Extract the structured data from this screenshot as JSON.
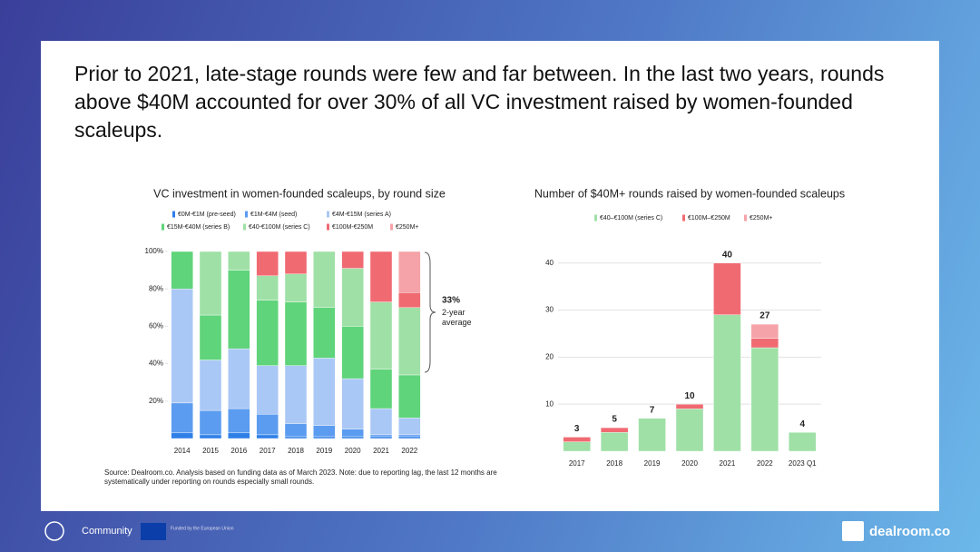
{
  "header": {
    "title": "Prior to 2021, late-stage rounds were few and far between. In the last two years, rounds above $40M accounted for over 30% of all VC investment raised by women-founded scaleups."
  },
  "chart_data": [
    {
      "type": "stacked_bar",
      "title": "VC investment in women-founded scaleups, by round size",
      "categories": [
        "2014",
        "2015",
        "2016",
        "2017",
        "2018",
        "2019",
        "2020",
        "2021",
        "2022"
      ],
      "series": [
        {
          "name": "€0M-€1M (pre-seed)",
          "color": "#2f7fe8",
          "values": [
            3,
            2,
            3,
            2,
            1,
            1,
            1,
            1,
            1
          ]
        },
        {
          "name": "€1M-€4M (seed)",
          "color": "#5b9cf0",
          "values": [
            16,
            13,
            13,
            11,
            7,
            6,
            4,
            1,
            1
          ]
        },
        {
          "name": "€4M-€15M (series A)",
          "color": "#aac8f5",
          "values": [
            61,
            27,
            32,
            26,
            31,
            36,
            27,
            14,
            9
          ]
        },
        {
          "name": "€15M-€40M (series B)",
          "color": "#5fd47a",
          "values": [
            20,
            24,
            42,
            35,
            34,
            27,
            28,
            21,
            23
          ]
        },
        {
          "name": "€40-€100M (series C)",
          "color": "#9fe0a6",
          "values": [
            0,
            34,
            10,
            13,
            15,
            30,
            31,
            36,
            36
          ]
        },
        {
          "name": "€100M-€250M",
          "color": "#f06a72",
          "values": [
            0,
            0,
            0,
            13,
            12,
            0,
            9,
            27,
            8
          ]
        },
        {
          "name": "€250M+",
          "color": "#f5a3a8",
          "values": [
            0,
            0,
            0,
            0,
            0,
            0,
            0,
            0,
            22
          ]
        }
      ],
      "ylim": [
        0,
        100
      ],
      "yticks": [
        {
          "value": 20,
          "label": "20%"
        },
        {
          "value": 40,
          "label": "40%"
        },
        {
          "value": 60,
          "label": "60%"
        },
        {
          "value": 80,
          "label": "80%"
        },
        {
          "value": 100,
          "label": "100%"
        }
      ],
      "annotation_value": "33%",
      "annotation_text": "2-year average"
    },
    {
      "type": "stacked_bar",
      "title": "Number of $40M+ rounds raised by women-founded scaleups",
      "categories": [
        "2017",
        "2018",
        "2019",
        "2020",
        "2021",
        "2022",
        "2023 Q1"
      ],
      "series": [
        {
          "name": "€40–€100M (series C)",
          "color": "#9fe0a6",
          "values": [
            2,
            4,
            7,
            9,
            29,
            22,
            4
          ]
        },
        {
          "name": "€100M–€250M",
          "color": "#f06a72",
          "values": [
            1,
            1,
            0,
            1,
            11,
            2,
            0
          ]
        },
        {
          "name": "€250M+",
          "color": "#f5a3a8",
          "values": [
            0,
            0,
            0,
            0,
            0,
            3,
            0
          ]
        }
      ],
      "totals": [
        3,
        5,
        7,
        10,
        40,
        27,
        4
      ],
      "ylim": [
        0,
        44
      ],
      "yticks": [
        10,
        20,
        30,
        40
      ],
      "grid": true
    }
  ],
  "source": "Source: Dealroom.co. Analysis based on funding data as of March 2023. Note: due to reporting lag, the last 12 months are systematically under reporting on rounds especially small rounds.",
  "footer": {
    "community": "Community",
    "eu": "Funded by the European Union",
    "brand": "dealroom.co"
  }
}
